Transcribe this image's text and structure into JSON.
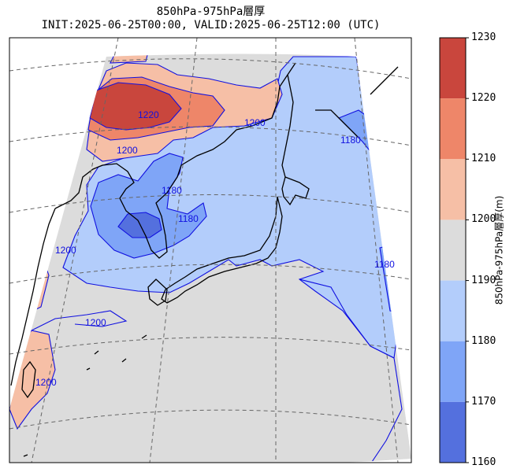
{
  "title": {
    "line1": "850hPa-975hPa層厚",
    "line2": "INIT:2025-06-25T00:00, VALID:2025-06-25T12:00 (UTC)"
  },
  "map": {
    "projection": "lambert-conformal",
    "region": "East Asia / Japan",
    "contour_labels": [
      "1220",
      "1200",
      "1200",
      "1180",
      "1180",
      "1200",
      "1180",
      "1200",
      "1200",
      "1180"
    ]
  },
  "colorbar": {
    "label": "850hPa-975hPa層厚(m)",
    "ticks": [
      "1230",
      "1220",
      "1210",
      "1200",
      "1190",
      "1180",
      "1170",
      "1160"
    ],
    "levels": [
      {
        "min": 1220,
        "max": 1230,
        "color": "#c9463d"
      },
      {
        "min": 1210,
        "max": 1220,
        "color": "#ee8669"
      },
      {
        "min": 1200,
        "max": 1210,
        "color": "#f6bfa6"
      },
      {
        "min": 1190,
        "max": 1200,
        "color": "#dcdcdc"
      },
      {
        "min": 1180,
        "max": 1190,
        "color": "#b3cdfb"
      },
      {
        "min": 1170,
        "max": 1180,
        "color": "#7fa5f7"
      },
      {
        "min": 1160,
        "max": 1170,
        "color": "#5470de"
      }
    ]
  }
}
